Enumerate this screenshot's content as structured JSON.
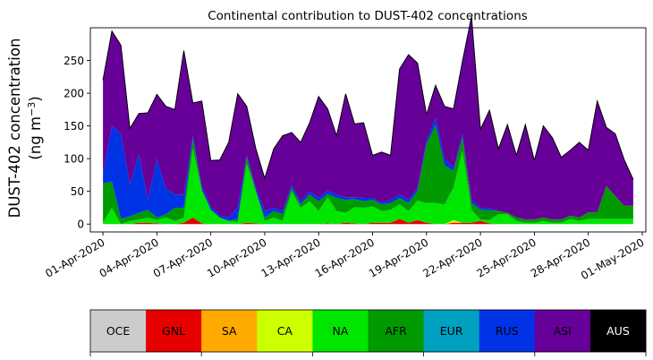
{
  "chart_data": {
    "type": "area",
    "stacked": true,
    "title": "Continental contribution to DUST-402 concentrations",
    "ylabel_line1": "DUST-402 concentration",
    "ylabel_line2_prefix": "(ng m",
    "ylabel_line2_exp": "−3",
    "ylabel_line2_suffix": ")",
    "xlabel": "",
    "ylim": [
      -12,
      300
    ],
    "xlim": [
      -0.7,
      30.2
    ],
    "yticks": [
      0,
      50,
      100,
      150,
      200,
      250
    ],
    "xticks": [
      {
        "x": 0,
        "label": "01-Apr-2020"
      },
      {
        "x": 3,
        "label": "04-Apr-2020"
      },
      {
        "x": 6,
        "label": "07-Apr-2020"
      },
      {
        "x": 9,
        "label": "10-Apr-2020"
      },
      {
        "x": 12,
        "label": "13-Apr-2020"
      },
      {
        "x": 15,
        "label": "16-Apr-2020"
      },
      {
        "x": 18,
        "label": "19-Apr-2020"
      },
      {
        "x": 21,
        "label": "22-Apr-2020"
      },
      {
        "x": 24,
        "label": "25-Apr-2020"
      },
      {
        "x": 27,
        "label": "28-Apr-2020"
      },
      {
        "x": 30,
        "label": "01-May-2020"
      }
    ],
    "x": [
      0,
      0.5,
      1,
      1.5,
      2,
      2.5,
      3,
      3.5,
      4,
      4.5,
      5,
      5.5,
      6,
      6.5,
      7,
      7.5,
      8,
      8.5,
      9,
      9.5,
      10,
      10.5,
      11,
      11.5,
      12,
      12.5,
      13,
      13.5,
      14,
      14.5,
      15,
      15.5,
      16,
      16.5,
      17,
      17.5,
      18,
      18.5,
      19,
      19.5,
      20,
      20.5,
      21,
      21.5,
      22,
      22.5,
      23,
      23.5,
      24,
      24.5,
      25,
      25.5,
      26,
      26.5,
      27,
      27.5,
      28,
      28.5,
      29,
      29.5
    ],
    "series": [
      {
        "name": "OCE",
        "color": "#cccccc",
        "values": [
          0,
          0,
          0,
          0,
          0,
          0,
          0,
          0,
          0,
          0,
          0,
          0,
          0,
          0,
          0,
          0,
          0,
          0,
          0,
          0,
          0,
          0,
          0,
          0,
          0,
          0,
          0,
          0,
          0,
          0,
          0,
          0,
          0,
          0,
          0,
          0,
          0,
          0,
          0,
          0,
          0,
          0,
          0,
          0,
          0,
          0,
          0,
          0,
          0,
          0,
          0,
          0,
          0,
          0,
          0,
          0,
          0,
          0,
          0,
          0
        ]
      },
      {
        "name": "GNL",
        "color": "#e60000",
        "values": [
          0,
          0,
          0,
          0,
          2,
          2,
          1,
          0,
          0,
          2,
          10,
          1,
          0,
          0,
          0,
          0,
          2,
          1,
          0,
          0,
          0,
          0,
          0,
          0,
          0,
          1,
          0,
          2,
          1,
          0,
          2,
          2,
          2,
          8,
          2,
          6,
          2,
          0,
          0,
          2,
          2,
          2,
          5,
          1,
          0,
          0,
          0,
          0,
          0,
          0,
          0,
          0,
          0,
          0,
          0,
          0,
          0,
          0,
          0,
          0
        ]
      },
      {
        "name": "SA",
        "color": "#ffaa00",
        "values": [
          0,
          0,
          0,
          0,
          0,
          0,
          0,
          0,
          0,
          0,
          0,
          0,
          0,
          0,
          0,
          0,
          0,
          0,
          0,
          0,
          0,
          0,
          0,
          0,
          0,
          0,
          0,
          0,
          0,
          0,
          0,
          0,
          0,
          0,
          0,
          0,
          0,
          0,
          0,
          1,
          0,
          0,
          0,
          0,
          0,
          0,
          0,
          0,
          0,
          0,
          0,
          0,
          0,
          0,
          0,
          0,
          0,
          0,
          0,
          0
        ]
      },
      {
        "name": "CA",
        "color": "#ccff00",
        "values": [
          0,
          0,
          0,
          0,
          0,
          0,
          0,
          0,
          0,
          0,
          0,
          0,
          0,
          0,
          0,
          0,
          0,
          0,
          0,
          0,
          0,
          0,
          0,
          0,
          0,
          0,
          0,
          0,
          0,
          0,
          0,
          0,
          0,
          0,
          0,
          0,
          0,
          0,
          0,
          3,
          0,
          0,
          0,
          0,
          0,
          0,
          0,
          0,
          0,
          0,
          0,
          0,
          0,
          0,
          0,
          0,
          0,
          0,
          0,
          0
        ]
      },
      {
        "name": "NA",
        "color": "#00e600",
        "values": [
          2,
          25,
          0,
          5,
          5,
          8,
          5,
          10,
          5,
          8,
          105,
          50,
          22,
          10,
          5,
          3,
          90,
          50,
          5,
          10,
          5,
          50,
          25,
          35,
          20,
          40,
          20,
          15,
          25,
          25,
          25,
          18,
          20,
          22,
          18,
          30,
          30,
          32,
          30,
          50,
          110,
          20,
          2,
          5,
          15,
          15,
          5,
          2,
          2,
          5,
          2,
          2,
          8,
          5,
          8,
          8,
          8,
          8,
          8,
          8
        ]
      },
      {
        "name": "AFR",
        "color": "#009900",
        "values": [
          60,
          40,
          8,
          7,
          10,
          12,
          4,
          5,
          20,
          15,
          15,
          2,
          0,
          0,
          0,
          5,
          10,
          0,
          5,
          10,
          10,
          5,
          5,
          10,
          15,
          5,
          20,
          20,
          12,
          10,
          10,
          10,
          10,
          10,
          12,
          15,
          90,
          120,
          60,
          25,
          20,
          10,
          15,
          15,
          5,
          2,
          5,
          5,
          5,
          5,
          5,
          5,
          5,
          5,
          10,
          10,
          50,
          35,
          20,
          20
        ]
      },
      {
        "name": "EUR",
        "color": "#00a0c0",
        "values": [
          0,
          0,
          0,
          0,
          0,
          0,
          0,
          0,
          0,
          0,
          0,
          0,
          0,
          0,
          0,
          0,
          0,
          0,
          0,
          0,
          0,
          0,
          0,
          0,
          0,
          0,
          0,
          0,
          0,
          0,
          0,
          0,
          0,
          0,
          0,
          0,
          0,
          0,
          0,
          0,
          0,
          0,
          0,
          0,
          0,
          0,
          0,
          0,
          0,
          0,
          0,
          0,
          0,
          0,
          0,
          0,
          0,
          0,
          0,
          0
        ]
      },
      {
        "name": "RUS",
        "color": "#0033e6",
        "values": [
          13,
          85,
          130,
          48,
          90,
          15,
          90,
          40,
          20,
          20,
          5,
          5,
          5,
          3,
          5,
          18,
          3,
          5,
          10,
          5,
          5,
          5,
          5,
          5,
          5,
          5,
          5,
          4,
          3,
          5,
          3,
          2,
          5,
          5,
          5,
          5,
          5,
          10,
          10,
          5,
          5,
          5,
          3,
          3,
          0,
          0,
          0,
          0,
          0,
          0,
          0,
          0,
          0,
          0,
          0,
          0,
          0,
          0,
          0,
          0
        ]
      },
      {
        "name": "ASI",
        "color": "#660099",
        "values": [
          145,
          145,
          135,
          86,
          62,
          133,
          98,
          125,
          130,
          220,
          50,
          130,
          70,
          85,
          115,
          173,
          75,
          60,
          50,
          90,
          115,
          80,
          90,
          105,
          155,
          125,
          90,
          158,
          112,
          115,
          65,
          78,
          68,
          192,
          222,
          190,
          40,
          50,
          80,
          90,
          112,
          280,
          120,
          150,
          95,
          135,
          95,
          145,
          90,
          140,
          125,
          95,
          100,
          115,
          95,
          170,
          90,
          95,
          70,
          40
        ]
      },
      {
        "name": "AUS",
        "color": "#000000",
        "values": [
          0,
          0,
          0,
          0,
          0,
          0,
          0,
          0,
          0,
          0,
          0,
          0,
          0,
          0,
          0,
          0,
          0,
          0,
          0,
          0,
          0,
          0,
          0,
          0,
          0,
          0,
          0,
          0,
          0,
          0,
          0,
          0,
          0,
          0,
          0,
          0,
          0,
          0,
          0,
          0,
          0,
          0,
          0,
          0,
          0,
          0,
          0,
          0,
          0,
          0,
          0,
          0,
          0,
          0,
          0,
          0,
          0,
          0,
          0,
          0
        ]
      }
    ]
  }
}
